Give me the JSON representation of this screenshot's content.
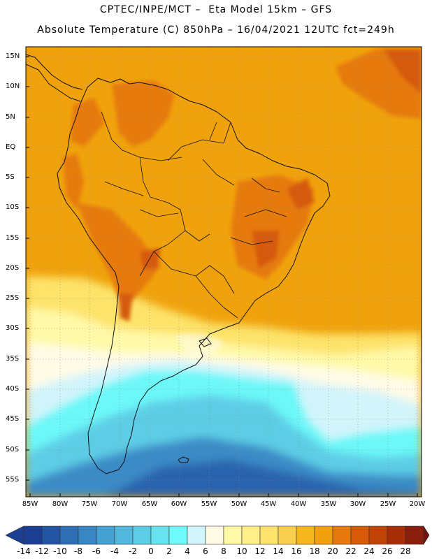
{
  "header": {
    "line1": "CPTEC/INPE/MCT –  Eta Model 15km – GFS",
    "line2": "Absolute Temperature (C) 850hPa – 16/04/2021 12UTC fct=249h"
  },
  "map": {
    "lat_labels": [
      "15N",
      "10N",
      "5N",
      "EQ",
      "5S",
      "10S",
      "15S",
      "20S",
      "25S",
      "30S",
      "35S",
      "40S",
      "45S",
      "50S",
      "55S"
    ],
    "lon_labels": [
      "85W",
      "80W",
      "75W",
      "70W",
      "65W",
      "60W",
      "55W",
      "50W",
      "45W",
      "40W",
      "35W",
      "30W",
      "25W",
      "20W"
    ]
  },
  "colorbar": {
    "labels": [
      "-14",
      "-12",
      "-10",
      "-8",
      "-6",
      "-4",
      "-2",
      "0",
      "2",
      "4",
      "6",
      "8",
      "10",
      "12",
      "14",
      "16",
      "18",
      "20",
      "22",
      "24",
      "26",
      "28"
    ],
    "colors": [
      "#1c3f92",
      "#2455a4",
      "#2e6eb5",
      "#3a86c4",
      "#47a0d2",
      "#52b8de",
      "#5dcde6",
      "#66e3ef",
      "#6efafa",
      "#d1f5fb",
      "#fffbe6",
      "#fffaa8",
      "#fff08a",
      "#fde36b",
      "#f9cf4e",
      "#f4b71e",
      "#f0a10d",
      "#e67a0f",
      "#d65a0a",
      "#c24307",
      "#a82e0a",
      "#8a1d0c",
      "#6e1410"
    ]
  }
}
